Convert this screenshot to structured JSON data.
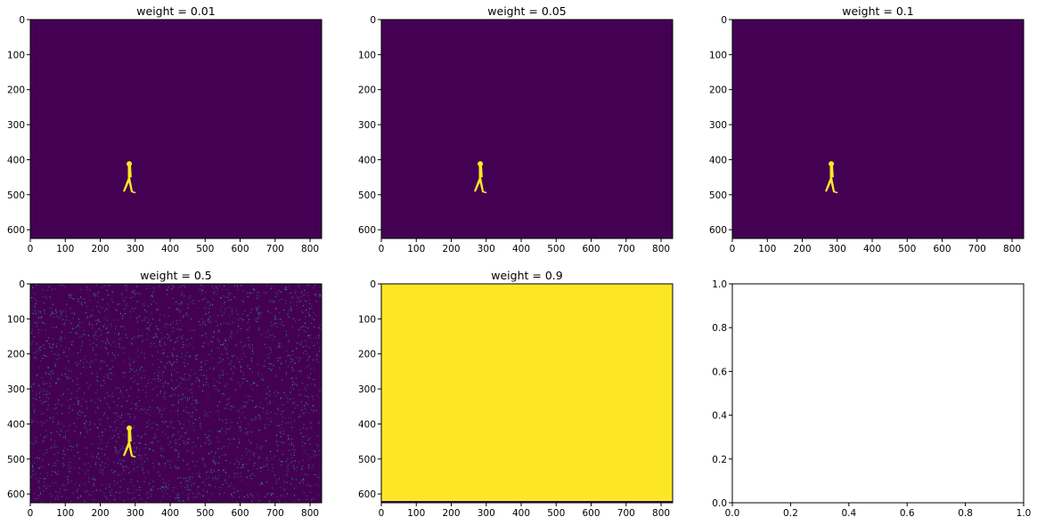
{
  "colors": {
    "background_dark": "#440154",
    "foreground_yellow": "#fde725",
    "noise": [
      "#31688e",
      "#21918c",
      "#35b779",
      "#3b528b"
    ],
    "axis": "#000000"
  },
  "chart_data": [
    {
      "type": "heatmap",
      "title": "weight = 0.01",
      "xlim": [
        0,
        833
      ],
      "ylim": [
        625,
        0
      ],
      "xticks": [
        "0",
        "100",
        "200",
        "300",
        "400",
        "500",
        "600",
        "700",
        "800"
      ],
      "yticks": [
        "0",
        "100",
        "200",
        "300",
        "400",
        "500",
        "600"
      ],
      "fill": "background_dark",
      "figure": "pedestrian",
      "noise": 0
    },
    {
      "type": "heatmap",
      "title": "weight = 0.05",
      "xlim": [
        0,
        833
      ],
      "ylim": [
        625,
        0
      ],
      "xticks": [
        "0",
        "100",
        "200",
        "300",
        "400",
        "500",
        "600",
        "700",
        "800"
      ],
      "yticks": [
        "0",
        "100",
        "200",
        "300",
        "400",
        "500",
        "600"
      ],
      "fill": "background_dark",
      "figure": "pedestrian",
      "noise": 0
    },
    {
      "type": "heatmap",
      "title": "weight = 0.1",
      "xlim": [
        0,
        833
      ],
      "ylim": [
        625,
        0
      ],
      "xticks": [
        "0",
        "100",
        "200",
        "300",
        "400",
        "500",
        "600",
        "700",
        "800"
      ],
      "yticks": [
        "0",
        "100",
        "200",
        "300",
        "400",
        "500",
        "600"
      ],
      "fill": "background_dark",
      "figure": "pedestrian",
      "noise": 0
    },
    {
      "type": "heatmap",
      "title": "weight = 0.5",
      "xlim": [
        0,
        833
      ],
      "ylim": [
        625,
        0
      ],
      "xticks": [
        "0",
        "100",
        "200",
        "300",
        "400",
        "500",
        "600",
        "700",
        "800"
      ],
      "yticks": [
        "0",
        "100",
        "200",
        "300",
        "400",
        "500",
        "600"
      ],
      "fill": "background_dark",
      "figure": "pedestrian",
      "noise": 1
    },
    {
      "type": "heatmap",
      "title": "weight = 0.9",
      "xlim": [
        0,
        833
      ],
      "ylim": [
        625,
        0
      ],
      "xticks": [
        "0",
        "100",
        "200",
        "300",
        "400",
        "500",
        "600",
        "700",
        "800"
      ],
      "yticks": [
        "0",
        "100",
        "200",
        "300",
        "400",
        "500",
        "600"
      ],
      "fill": "foreground_yellow",
      "figure": "none",
      "noise": 0,
      "bottom_strip": "background_dark"
    },
    {
      "type": "empty",
      "title": "",
      "xlim": [
        0,
        1
      ],
      "ylim": [
        0,
        1
      ],
      "xticks": [
        "0.0",
        "0.2",
        "0.4",
        "0.6",
        "0.8",
        "1.0"
      ],
      "yticks": [
        "0.0",
        "0.2",
        "0.4",
        "0.6",
        "0.8",
        "1.0"
      ]
    }
  ]
}
